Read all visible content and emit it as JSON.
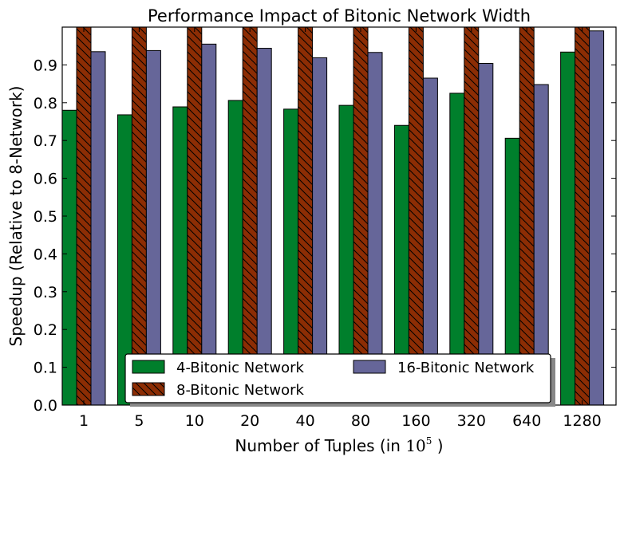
{
  "chart_data": {
    "type": "bar",
    "title": "Performance Impact of Bitonic Network Width",
    "xlabel_text": "Number of Tuples (in ",
    "xlabel_base": "10",
    "xlabel_exp": "5",
    "xlabel_close": " )",
    "ylabel": "Speedup (Relative to 8-Network)",
    "ylim": [
      0.0,
      1.0
    ],
    "yticks": [
      0.0,
      0.1,
      0.2,
      0.3,
      0.4,
      0.5,
      0.6,
      0.7,
      0.8,
      0.9
    ],
    "categories": [
      "1",
      "5",
      "10",
      "20",
      "40",
      "80",
      "160",
      "320",
      "640",
      "1280"
    ],
    "series": [
      {
        "name": "4-Bitonic Network",
        "color": "#007f2c",
        "hatch": false,
        "values": [
          0.78,
          0.768,
          0.789,
          0.806,
          0.783,
          0.793,
          0.74,
          0.825,
          0.706,
          0.934
        ]
      },
      {
        "name": "8-Bitonic Network",
        "color": "#8c2d04",
        "hatch": true,
        "values": [
          1.0,
          1.0,
          1.0,
          1.0,
          1.0,
          1.0,
          1.0,
          1.0,
          1.0,
          1.0
        ]
      },
      {
        "name": "16-Bitonic Network",
        "color": "#666699",
        "hatch": false,
        "values": [
          0.935,
          0.938,
          0.955,
          0.944,
          0.919,
          0.933,
          0.865,
          0.904,
          0.848,
          0.99
        ]
      }
    ],
    "grid": false,
    "legend_position": "bottom-center"
  }
}
